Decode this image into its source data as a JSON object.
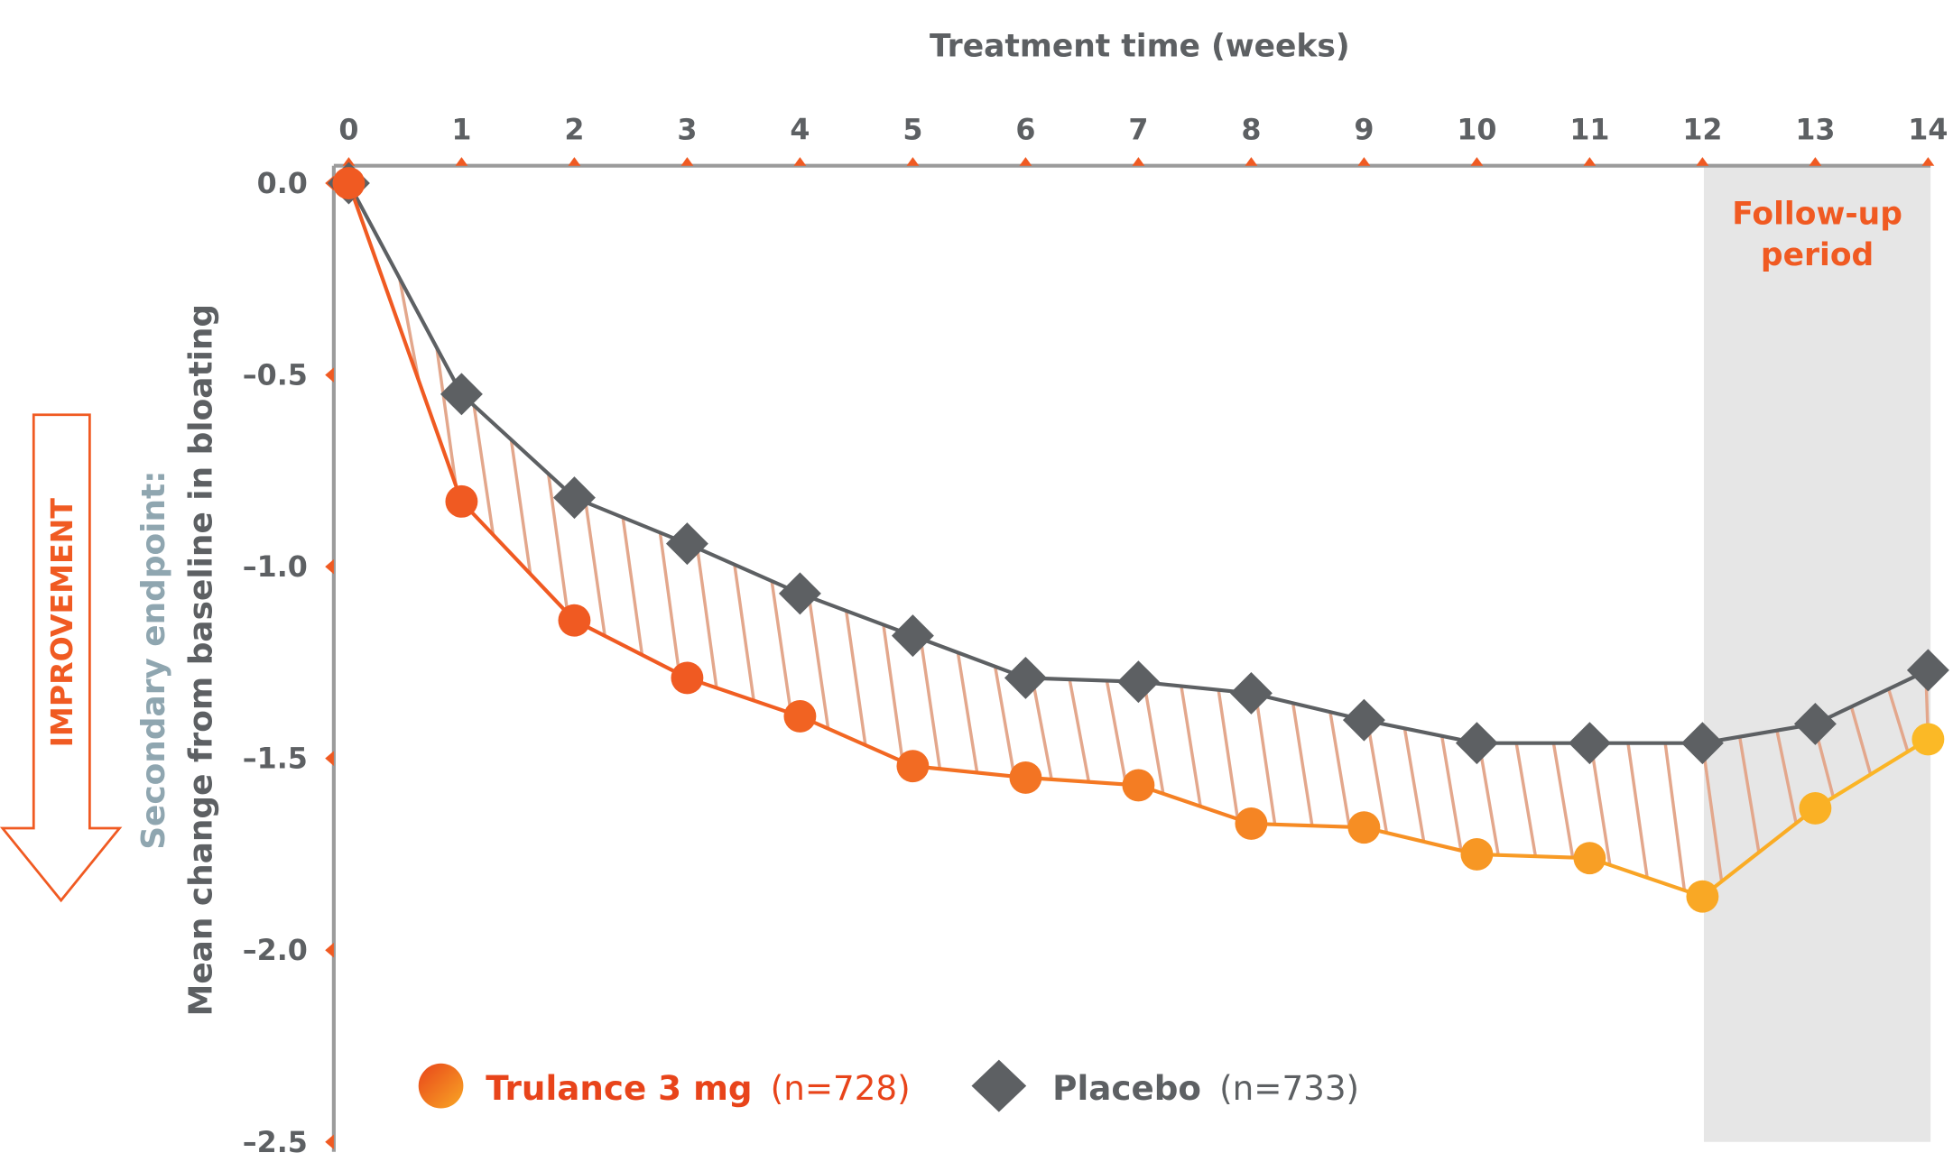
{
  "chart_data": {
    "type": "line",
    "title": "",
    "xlabel": "Treatment time (weeks)",
    "ylabel_secondary": "Secondary endpoint:",
    "ylabel": "Mean change from baseline in bloating",
    "improvement_label": "IMPROVEMENT",
    "annotation": [
      "Follow-up",
      "period"
    ],
    "follow_up_range": [
      12,
      14
    ],
    "x": [
      0,
      1,
      2,
      3,
      4,
      5,
      6,
      7,
      8,
      9,
      10,
      11,
      12,
      13,
      14
    ],
    "xlim": [
      0,
      14
    ],
    "ylim": [
      -2.5,
      0.0
    ],
    "yticks": [
      "0.0",
      "–0.5",
      "–1.0",
      "–1.5",
      "–2.0",
      "–2.5"
    ],
    "ytick_values": [
      0,
      -0.5,
      -1.0,
      -1.5,
      -2.0,
      -2.5
    ],
    "xticks": [
      "0",
      "1",
      "2",
      "3",
      "4",
      "5",
      "6",
      "7",
      "8",
      "9",
      "10",
      "11",
      "12",
      "13",
      "14"
    ],
    "legend_position": "bottom",
    "series": [
      {
        "name": "Trulance 3 mg",
        "n_label": "(n=728)",
        "marker": "circle",
        "color": "#f05a22",
        "color_end": "#f9a825",
        "values": [
          0,
          -0.83,
          -1.14,
          -1.29,
          -1.39,
          -1.52,
          -1.55,
          -1.57,
          -1.67,
          -1.68,
          -1.75,
          -1.76,
          -1.86,
          -1.63,
          -1.45
        ]
      },
      {
        "name": "Placebo",
        "n_label": "(n=733)",
        "marker": "diamond",
        "color": "#5d6063",
        "values": [
          0,
          -0.55,
          -0.82,
          -0.94,
          -1.07,
          -1.18,
          -1.29,
          -1.3,
          -1.33,
          -1.4,
          -1.46,
          -1.46,
          -1.46,
          -1.41,
          -1.27
        ]
      }
    ]
  }
}
